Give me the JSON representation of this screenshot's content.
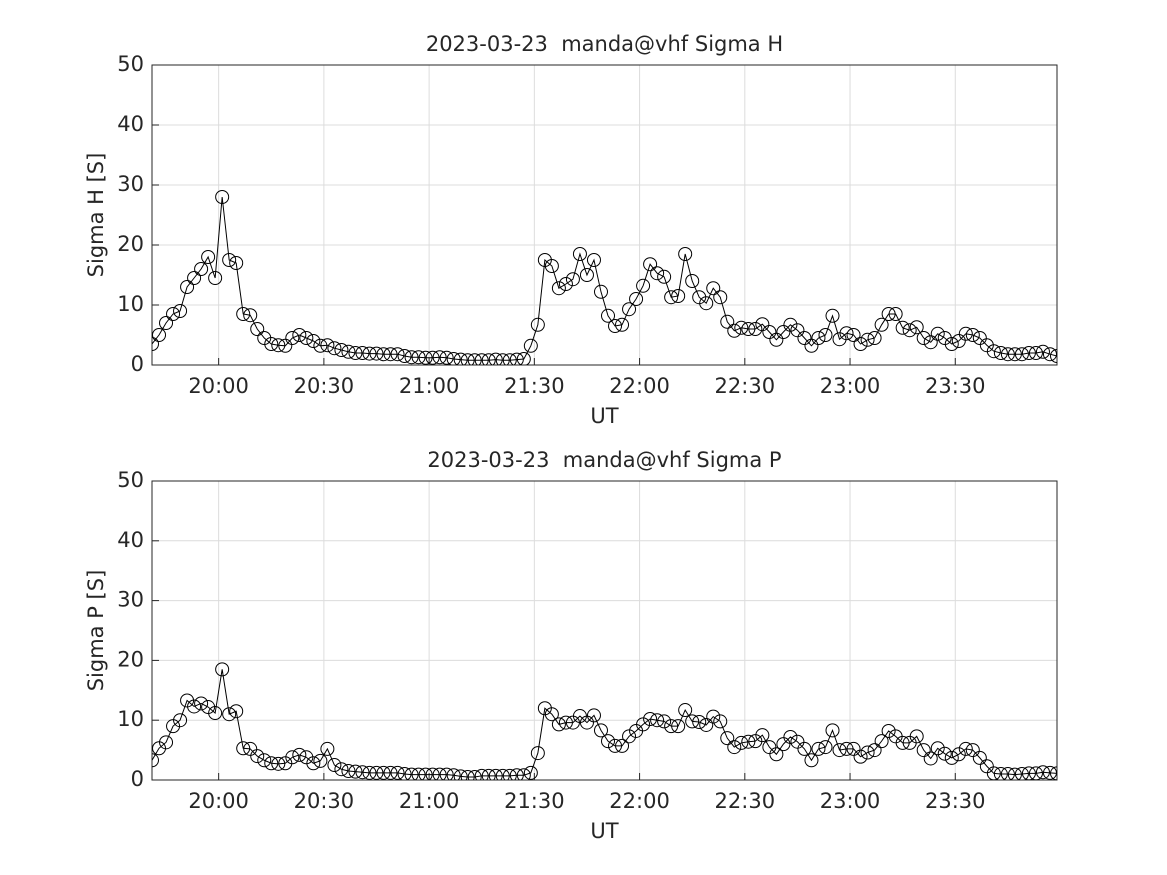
{
  "chart_data": [
    {
      "type": "line",
      "title": "2023-03-23  manda@vhf Sigma H",
      "x_label": "UT",
      "y_label": "Sigma H [S]",
      "x": [
        1181,
        1183,
        1185,
        1187,
        1189,
        1191,
        1193,
        1195,
        1197,
        1199,
        1201,
        1203,
        1205,
        1207,
        1209,
        1211,
        1213,
        1215,
        1217,
        1219,
        1221,
        1223,
        1225,
        1227,
        1229,
        1231,
        1233,
        1235,
        1237,
        1239,
        1241,
        1243,
        1245,
        1247,
        1249,
        1251,
        1253,
        1255,
        1257,
        1259,
        1261,
        1263,
        1265,
        1267,
        1269,
        1271,
        1273,
        1275,
        1277,
        1279,
        1281,
        1283,
        1285,
        1287,
        1289,
        1291,
        1293,
        1295,
        1297,
        1299,
        1301,
        1303,
        1305,
        1307,
        1309,
        1311,
        1313,
        1315,
        1317,
        1319,
        1321,
        1323,
        1325,
        1327,
        1329,
        1331,
        1333,
        1335,
        1337,
        1339,
        1341,
        1343,
        1345,
        1347,
        1349,
        1351,
        1353,
        1355,
        1357,
        1359,
        1361,
        1363,
        1365,
        1367,
        1369,
        1371,
        1373,
        1375,
        1377,
        1379,
        1381,
        1383,
        1385,
        1387,
        1389,
        1391,
        1393,
        1395,
        1397,
        1399,
        1401,
        1403,
        1405,
        1407,
        1409,
        1411,
        1413,
        1415,
        1417,
        1419,
        1421,
        1423,
        1425,
        1427,
        1429,
        1431,
        1433,
        1435,
        1437,
        1439
      ],
      "series": [
        {
          "color": "#000000",
          "values": [
            3.5,
            5,
            7,
            8.5,
            9,
            13,
            14.5,
            16,
            18,
            14.5,
            28,
            17.5,
            17,
            8.5,
            8.3,
            6,
            4.5,
            3.5,
            3.3,
            3.2,
            4.5,
            5,
            4.5,
            4,
            3.2,
            3.3,
            2.8,
            2.5,
            2.2,
            2.0,
            2.0,
            1.9,
            1.9,
            1.8,
            1.8,
            1.8,
            1.5,
            1.3,
            1.3,
            1.2,
            1.2,
            1.3,
            1.2,
            1.0,
            0.9,
            0.8,
            0.8,
            0.8,
            0.8,
            0.9,
            0.8,
            0.8,
            0.9,
            1.0,
            3.2,
            6.7,
            17.5,
            16.5,
            12.8,
            13.5,
            14.3,
            18.5,
            15,
            17.5,
            12.2,
            8.2,
            6.5,
            6.7,
            9.3,
            11,
            13.2,
            16.8,
            15.3,
            14.7,
            11.3,
            11.5,
            18.5,
            14,
            11.3,
            10.3,
            12.8,
            11.3,
            7.2,
            5.7,
            6.2,
            6,
            6,
            6.8,
            5.5,
            4.2,
            5.5,
            6.7,
            5.8,
            4.5,
            3.2,
            4.5,
            5,
            8.2,
            4.3,
            5.3,
            5,
            3.5,
            4.2,
            4.5,
            6.7,
            8.5,
            8.5,
            6.2,
            5.8,
            6.3,
            4.5,
            3.8,
            5.2,
            4.5,
            3.5,
            4,
            5.2,
            5,
            4.5,
            3.3,
            2.3,
            2,
            1.8,
            1.8,
            1.8,
            2,
            2,
            2.2,
            1.8,
            1.5
          ]
        }
      ],
      "xlim": [
        1181,
        1439
      ],
      "xticks": [
        {
          "value": 1200,
          "label": "20:00"
        },
        {
          "value": 1230,
          "label": "20:30"
        },
        {
          "value": 1260,
          "label": "21:00"
        },
        {
          "value": 1290,
          "label": "21:30"
        },
        {
          "value": 1320,
          "label": "22:00"
        },
        {
          "value": 1350,
          "label": "22:30"
        },
        {
          "value": 1380,
          "label": "23:00"
        },
        {
          "value": 1410,
          "label": "23:30"
        }
      ],
      "ylim": [
        0,
        50
      ],
      "yticks": [
        0,
        10,
        20,
        30,
        40,
        50
      ],
      "grid": true,
      "marker": "circle"
    },
    {
      "type": "line",
      "title": "2023-03-23  manda@vhf Sigma P",
      "x_label": "UT",
      "y_label": "Sigma P [S]",
      "x": [
        1181,
        1183,
        1185,
        1187,
        1189,
        1191,
        1193,
        1195,
        1197,
        1199,
        1201,
        1203,
        1205,
        1207,
        1209,
        1211,
        1213,
        1215,
        1217,
        1219,
        1221,
        1223,
        1225,
        1227,
        1229,
        1231,
        1233,
        1235,
        1237,
        1239,
        1241,
        1243,
        1245,
        1247,
        1249,
        1251,
        1253,
        1255,
        1257,
        1259,
        1261,
        1263,
        1265,
        1267,
        1269,
        1271,
        1273,
        1275,
        1277,
        1279,
        1281,
        1283,
        1285,
        1287,
        1289,
        1291,
        1293,
        1295,
        1297,
        1299,
        1301,
        1303,
        1305,
        1307,
        1309,
        1311,
        1313,
        1315,
        1317,
        1319,
        1321,
        1323,
        1325,
        1327,
        1329,
        1331,
        1333,
        1335,
        1337,
        1339,
        1341,
        1343,
        1345,
        1347,
        1349,
        1351,
        1353,
        1355,
        1357,
        1359,
        1361,
        1363,
        1365,
        1367,
        1369,
        1371,
        1373,
        1375,
        1377,
        1379,
        1381,
        1383,
        1385,
        1387,
        1389,
        1391,
        1393,
        1395,
        1397,
        1399,
        1401,
        1403,
        1405,
        1407,
        1409,
        1411,
        1413,
        1415,
        1417,
        1419,
        1421,
        1423,
        1425,
        1427,
        1429,
        1431,
        1433,
        1435,
        1437,
        1439
      ],
      "series": [
        {
          "color": "#000000",
          "values": [
            3.3,
            5.3,
            6.3,
            9,
            10,
            13.3,
            12.3,
            12.8,
            12.2,
            11.2,
            18.5,
            11,
            11.5,
            5.3,
            5.2,
            4,
            3.3,
            2.8,
            2.7,
            2.8,
            3.8,
            4.2,
            3.8,
            2.8,
            3.2,
            5.2,
            2.5,
            1.8,
            1.5,
            1.4,
            1.3,
            1.2,
            1.2,
            1.2,
            1.2,
            1.2,
            1.0,
            0.9,
            0.9,
            0.9,
            0.9,
            0.9,
            0.9,
            0.8,
            0.6,
            0.5,
            0.5,
            0.7,
            0.7,
            0.7,
            0.7,
            0.7,
            0.8,
            0.8,
            1.2,
            4.5,
            12,
            11,
            9.3,
            9.6,
            9.6,
            10.7,
            9.6,
            10.8,
            8.3,
            6.5,
            5.7,
            5.7,
            7.3,
            8.2,
            9.3,
            10.2,
            10,
            9.8,
            9,
            9,
            11.7,
            9.8,
            9.7,
            9.2,
            10.6,
            9.8,
            7,
            5.5,
            6.2,
            6.4,
            6.5,
            7.5,
            5.5,
            4.3,
            6,
            7.2,
            6.4,
            5.2,
            3.3,
            5.2,
            5.5,
            8.3,
            5,
            5.2,
            5.2,
            3.9,
            4.6,
            5,
            6.5,
            8.2,
            7.3,
            6.2,
            6.2,
            7.3,
            5,
            3.6,
            5.3,
            4.4,
            3.7,
            4.3,
            5.2,
            5,
            3.7,
            2.3,
            1.1,
            1.0,
            1.0,
            0.9,
            1.0,
            1.1,
            1.1,
            1.3,
            1.2,
            1.1
          ]
        }
      ],
      "xlim": [
        1181,
        1439
      ],
      "xticks": [
        {
          "value": 1200,
          "label": "20:00"
        },
        {
          "value": 1230,
          "label": "20:30"
        },
        {
          "value": 1260,
          "label": "21:00"
        },
        {
          "value": 1290,
          "label": "21:30"
        },
        {
          "value": 1320,
          "label": "22:00"
        },
        {
          "value": 1350,
          "label": "22:30"
        },
        {
          "value": 1380,
          "label": "23:00"
        },
        {
          "value": 1410,
          "label": "23:30"
        }
      ],
      "ylim": [
        0,
        50
      ],
      "yticks": [
        0,
        10,
        20,
        30,
        40,
        50
      ],
      "grid": true,
      "marker": "circle"
    }
  ]
}
